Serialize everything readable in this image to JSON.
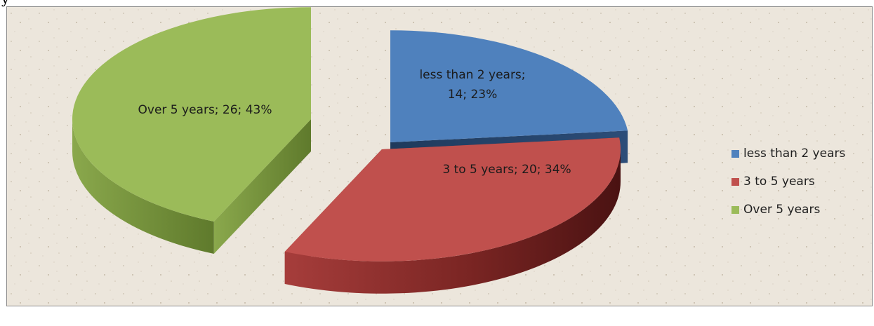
{
  "page": {
    "top_text": "y"
  },
  "chart_data": {
    "type": "pie",
    "title": "",
    "series": [
      {
        "name": "less than 2 years",
        "value": 14,
        "percent": 23,
        "label_line1": "less than 2 years;",
        "label_line2": "14; 23%",
        "color": "#4f81bd"
      },
      {
        "name": "3 to 5 years",
        "value": 20,
        "percent": 34,
        "label_line1": "3 to 5 years; 20; 34%",
        "label_line2": "",
        "color": "#c0504d"
      },
      {
        "name": "Over 5 years",
        "value": 26,
        "percent": 43,
        "label_line1": "Over 5 years; 26; 43%",
        "label_line2": "",
        "color": "#9bbb59"
      }
    ],
    "legend_position": "right",
    "style": "3d-exploded"
  },
  "legend": {
    "items": [
      {
        "label": "less than 2 years",
        "color": "#4f81bd"
      },
      {
        "label": "3 to 5 years",
        "color": "#c0504d"
      },
      {
        "label": "Over 5 years",
        "color": "#9bbb59"
      }
    ]
  }
}
